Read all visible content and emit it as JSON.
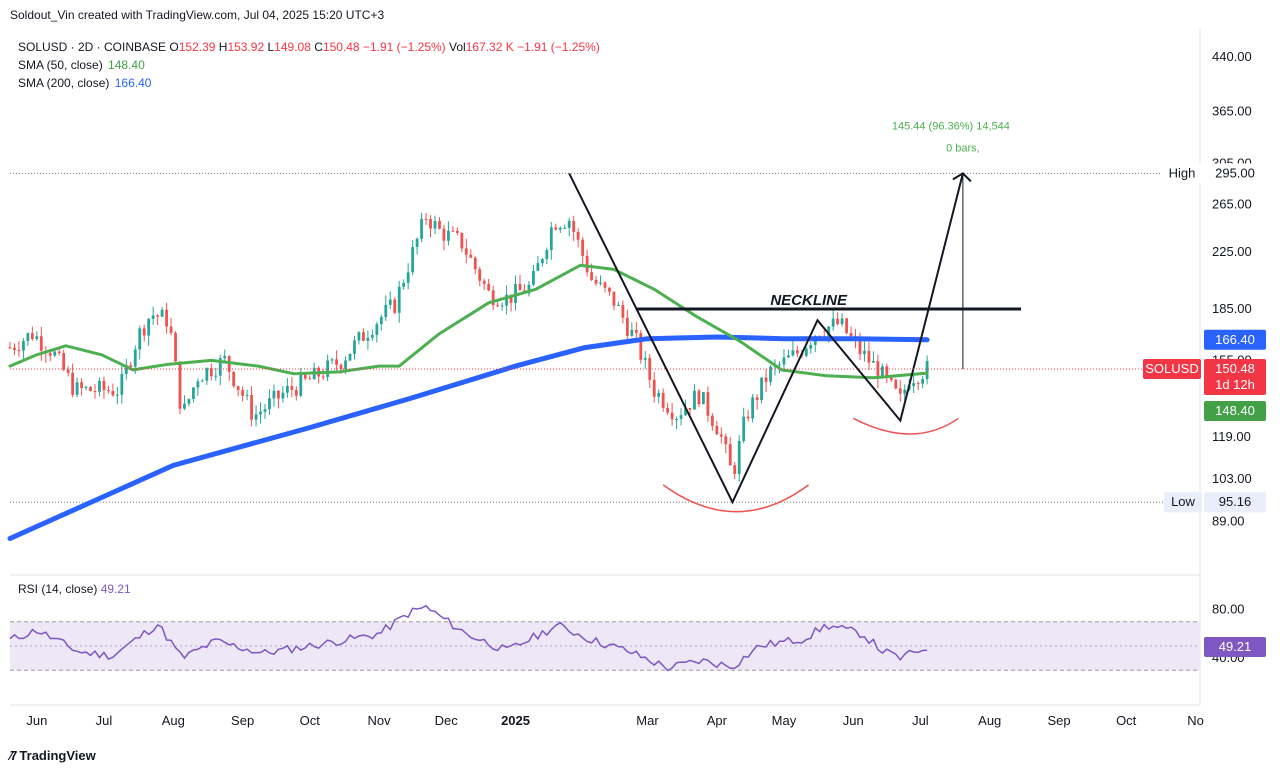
{
  "header": {
    "attribution": "Soldout_Vin created with TradingView.com, Jul 04, 2025 15:20 UTC+3"
  },
  "legend": {
    "symbol": "SOLUSD · 2D · COINBASE",
    "o_label": "O",
    "o_value": "152.39",
    "h_label": "H",
    "h_value": "153.92",
    "l_label": "L",
    "l_value": "149.08",
    "c_label": "C",
    "c_value": "150.48",
    "change": "−1.91 (−1.25%)",
    "vol_label": "Vol",
    "vol_value": "167.32 K",
    "vol_change": "−1.91 (−1.25%)",
    "sma50_label": "SMA (50, close)",
    "sma50_value": "148.40",
    "sma200_label": "SMA (200, close)",
    "sma200_value": "166.40",
    "rsi_label": "RSI (14, close)",
    "rsi_value": "49.21"
  },
  "colors": {
    "up": "#26a69a",
    "down": "#ef5350",
    "sma50": "#4caf50",
    "sma200": "#2962ff",
    "rsi_line": "#7e57c2",
    "rsi_band": "#ede7f6",
    "pattern": "#131722",
    "arc": "#ef5350",
    "measure": "#4caf50",
    "price_badge": "#f23645",
    "sma50_badge": "#43a047",
    "sma200_badge": "#2962ff"
  },
  "chart_data": [
    {
      "type": "candlestick",
      "symbol": "SOLUSD",
      "interval": "2D",
      "exchange": "COINBASE",
      "x_tick_labels": [
        "Jun",
        "Jul",
        "Aug",
        "Sep",
        "Oct",
        "Nov",
        "Dec",
        "2025",
        "Mar",
        "Apr",
        "May",
        "Jun",
        "Jul",
        "Aug",
        "Sep",
        "Oct",
        "No"
      ],
      "y_tick_labels": [
        "440.00",
        "365.00",
        "305.00",
        "265.00",
        "225.00",
        "185.00",
        "155.00",
        "119.00",
        "103.00",
        "89.00"
      ],
      "y_scale": "log",
      "ylim": [
        78,
        470
      ],
      "close_series": [
        {
          "date": "2024-05-20",
          "close": 162
        },
        {
          "date": "2024-05-30",
          "close": 170
        },
        {
          "date": "2024-06-08",
          "close": 160
        },
        {
          "date": "2024-06-18",
          "close": 140
        },
        {
          "date": "2024-06-28",
          "close": 140
        },
        {
          "date": "2024-07-08",
          "close": 140
        },
        {
          "date": "2024-07-16",
          "close": 168
        },
        {
          "date": "2024-07-22",
          "close": 182
        },
        {
          "date": "2024-07-30",
          "close": 178
        },
        {
          "date": "2024-08-05",
          "close": 128
        },
        {
          "date": "2024-08-12",
          "close": 147
        },
        {
          "date": "2024-08-24",
          "close": 155
        },
        {
          "date": "2024-09-06",
          "close": 128
        },
        {
          "date": "2024-09-20",
          "close": 139
        },
        {
          "date": "2024-10-01",
          "close": 145
        },
        {
          "date": "2024-10-15",
          "close": 155
        },
        {
          "date": "2024-10-29",
          "close": 175
        },
        {
          "date": "2024-11-08",
          "close": 188
        },
        {
          "date": "2024-11-14",
          "close": 215
        },
        {
          "date": "2024-11-22",
          "close": 255
        },
        {
          "date": "2024-11-28",
          "close": 242
        },
        {
          "date": "2024-12-08",
          "close": 232
        },
        {
          "date": "2024-12-20",
          "close": 195
        },
        {
          "date": "2024-12-28",
          "close": 192
        },
        {
          "date": "2025-01-08",
          "close": 200
        },
        {
          "date": "2025-01-18",
          "close": 250
        },
        {
          "date": "2025-01-25",
          "close": 252
        },
        {
          "date": "2025-02-04",
          "close": 205
        },
        {
          "date": "2025-02-14",
          "close": 190
        },
        {
          "date": "2025-02-24",
          "close": 165
        },
        {
          "date": "2025-03-04",
          "close": 140
        },
        {
          "date": "2025-03-14",
          "close": 129
        },
        {
          "date": "2025-03-24",
          "close": 138
        },
        {
          "date": "2025-04-02",
          "close": 122
        },
        {
          "date": "2025-04-08",
          "close": 104
        },
        {
          "date": "2025-04-14",
          "close": 128
        },
        {
          "date": "2025-04-24",
          "close": 148
        },
        {
          "date": "2025-05-08",
          "close": 160
        },
        {
          "date": "2025-05-16",
          "close": 172
        },
        {
          "date": "2025-05-26",
          "close": 176
        },
        {
          "date": "2025-06-04",
          "close": 160
        },
        {
          "date": "2025-06-12",
          "close": 150
        },
        {
          "date": "2025-06-22",
          "close": 135
        },
        {
          "date": "2025-06-26",
          "close": 146
        },
        {
          "date": "2025-07-04",
          "close": 150.48
        }
      ],
      "sma50_series": [
        {
          "date": "2024-05-20",
          "value": 152
        },
        {
          "date": "2024-06-01",
          "value": 158
        },
        {
          "date": "2024-06-14",
          "value": 163
        },
        {
          "date": "2024-06-30",
          "value": 158
        },
        {
          "date": "2024-07-14",
          "value": 150
        },
        {
          "date": "2024-07-30",
          "value": 153
        },
        {
          "date": "2024-08-18",
          "value": 155
        },
        {
          "date": "2024-09-08",
          "value": 152
        },
        {
          "date": "2024-09-24",
          "value": 148
        },
        {
          "date": "2024-10-14",
          "value": 149
        },
        {
          "date": "2024-11-01",
          "value": 152
        },
        {
          "date": "2024-11-10",
          "value": 152
        },
        {
          "date": "2024-11-28",
          "value": 170
        },
        {
          "date": "2024-12-20",
          "value": 189
        },
        {
          "date": "2025-01-10",
          "value": 198
        },
        {
          "date": "2025-01-30",
          "value": 215
        },
        {
          "date": "2025-02-14",
          "value": 212
        },
        {
          "date": "2025-03-04",
          "value": 198
        },
        {
          "date": "2025-03-22",
          "value": 181
        },
        {
          "date": "2025-04-12",
          "value": 165
        },
        {
          "date": "2025-04-30",
          "value": 150
        },
        {
          "date": "2025-05-20",
          "value": 147
        },
        {
          "date": "2025-06-10",
          "value": 146
        },
        {
          "date": "2025-07-04",
          "value": 148.4
        }
      ],
      "sma200_series": [
        {
          "date": "2024-05-20",
          "value": 84
        },
        {
          "date": "2024-08-01",
          "value": 108
        },
        {
          "date": "2024-10-01",
          "value": 123
        },
        {
          "date": "2024-11-15",
          "value": 136
        },
        {
          "date": "2025-01-01",
          "value": 152
        },
        {
          "date": "2025-02-01",
          "value": 162
        },
        {
          "date": "2025-03-01",
          "value": 167
        },
        {
          "date": "2025-04-01",
          "value": 168
        },
        {
          "date": "2025-05-01",
          "value": 167
        },
        {
          "date": "2025-06-01",
          "value": 167
        },
        {
          "date": "2025-07-04",
          "value": 166.4
        }
      ],
      "horizontal_lines": [
        {
          "label": "High",
          "value": 295.0
        },
        {
          "label": "Low",
          "value": 95.16
        },
        {
          "label": "NECKLINE",
          "value": 185,
          "from": "2025-02-24",
          "to": "2025-08-15"
        }
      ],
      "pattern": {
        "zigzag": [
          {
            "date": "2025-01-25",
            "value": 295
          },
          {
            "date": "2025-04-08",
            "value": 95.16
          },
          {
            "date": "2025-05-16",
            "value": 178
          },
          {
            "date": "2025-06-22",
            "value": 126
          },
          {
            "date": "2025-07-20",
            "value": 295
          }
        ],
        "measure_label": "145.44 (96.36%) 14,544",
        "bars_label": "0 bars,"
      },
      "price_badges": [
        {
          "label": "SOLUSD",
          "value": "150.48",
          "sub": "1d 12h"
        },
        {
          "label": "",
          "value": "166.40"
        },
        {
          "label": "",
          "value": "148.40"
        }
      ]
    },
    {
      "type": "line",
      "name": "RSI (14, close)",
      "y_tick_labels": [
        "80.00",
        "40.00"
      ],
      "ylim": [
        22,
        92
      ],
      "band": [
        30,
        70
      ],
      "series": [
        {
          "date": "2024-05-20",
          "value": 55
        },
        {
          "date": "2024-06-01",
          "value": 63
        },
        {
          "date": "2024-06-20",
          "value": 45
        },
        {
          "date": "2024-07-05",
          "value": 42
        },
        {
          "date": "2024-07-25",
          "value": 68
        },
        {
          "date": "2024-08-05",
          "value": 40
        },
        {
          "date": "2024-08-20",
          "value": 54
        },
        {
          "date": "2024-09-10",
          "value": 44
        },
        {
          "date": "2024-10-01",
          "value": 50
        },
        {
          "date": "2024-10-20",
          "value": 56
        },
        {
          "date": "2024-11-01",
          "value": 60
        },
        {
          "date": "2024-11-15",
          "value": 78
        },
        {
          "date": "2024-11-22",
          "value": 82
        },
        {
          "date": "2024-12-10",
          "value": 60
        },
        {
          "date": "2024-12-28",
          "value": 46
        },
        {
          "date": "2025-01-10",
          "value": 58
        },
        {
          "date": "2025-01-20",
          "value": 67
        },
        {
          "date": "2025-02-04",
          "value": 55
        },
        {
          "date": "2025-02-20",
          "value": 46
        },
        {
          "date": "2025-03-10",
          "value": 32
        },
        {
          "date": "2025-03-25",
          "value": 38
        },
        {
          "date": "2025-04-08",
          "value": 33
        },
        {
          "date": "2025-04-20",
          "value": 50
        },
        {
          "date": "2025-05-10",
          "value": 56
        },
        {
          "date": "2025-05-20",
          "value": 67
        },
        {
          "date": "2025-06-05",
          "value": 60
        },
        {
          "date": "2025-06-14",
          "value": 46
        },
        {
          "date": "2025-06-22",
          "value": 40
        },
        {
          "date": "2025-07-04",
          "value": 49.21
        }
      ]
    }
  ]
}
